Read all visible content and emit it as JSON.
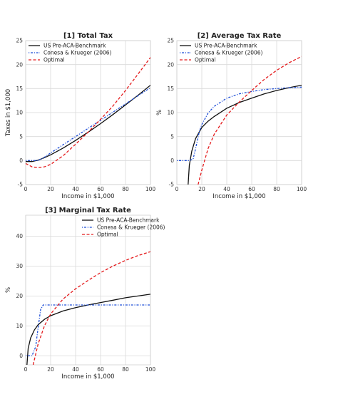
{
  "figure": {
    "legend_labels": [
      "US Pre-ACA-Benchmark",
      "Conesa & Krueger (2006)",
      "Optimal"
    ],
    "series_colors": [
      "#111111",
      "#1f4fd8",
      "#e41a1c"
    ],
    "series_styles": [
      "solid",
      "dashdot",
      "dashed"
    ]
  },
  "chart_data": [
    {
      "type": "line",
      "title": "[1] Total Tax",
      "xlabel": "Income in $1,000",
      "ylabel": "Taxes in $1,000",
      "xlim": [
        0,
        100
      ],
      "ylim": [
        -5,
        25
      ],
      "xticks": [
        0,
        20,
        40,
        60,
        80,
        100
      ],
      "yticks": [
        -5,
        0,
        5,
        10,
        15,
        20,
        25
      ],
      "legend_position": "top-left",
      "grid": true,
      "series": [
        {
          "name": "US Pre-ACA-Benchmark",
          "x": [
            0,
            5,
            10,
            15,
            20,
            30,
            40,
            50,
            60,
            70,
            80,
            90,
            100
          ],
          "y": [
            -0.2,
            -0.2,
            0.1,
            0.6,
            1.2,
            2.6,
            4.2,
            5.9,
            7.7,
            9.6,
            11.6,
            13.6,
            15.7
          ]
        },
        {
          "name": "Conesa & Krueger (2006)",
          "x": [
            0,
            5,
            10,
            15,
            20,
            30,
            40,
            50,
            60,
            70,
            80,
            90,
            100
          ],
          "y": [
            0,
            0,
            0,
            0.7,
            1.6,
            3.3,
            5.0,
            6.7,
            8.4,
            10.1,
            11.8,
            13.5,
            15.2
          ]
        },
        {
          "name": "Optimal",
          "x": [
            0,
            5,
            10,
            15,
            20,
            30,
            40,
            50,
            60,
            70,
            80,
            90,
            100
          ],
          "y": [
            -0.6,
            -1.3,
            -1.5,
            -1.3,
            -0.8,
            1.0,
            3.4,
            5.9,
            8.6,
            11.4,
            14.6,
            18.0,
            21.5
          ]
        }
      ]
    },
    {
      "type": "line",
      "title": "[2] Average Tax Rate",
      "xlabel": "Income in $1,000",
      "ylabel": "%",
      "xlim": [
        0,
        100
      ],
      "ylim": [
        -5,
        25
      ],
      "xticks": [
        0,
        20,
        40,
        60,
        80,
        100
      ],
      "yticks": [
        -5,
        0,
        5,
        10,
        15,
        20,
        25
      ],
      "legend_position": "top-left",
      "grid": true,
      "series": [
        {
          "name": "US Pre-ACA-Benchmark",
          "x": [
            9,
            10,
            12,
            15,
            20,
            25,
            30,
            40,
            50,
            60,
            70,
            80,
            90,
            100
          ],
          "y": [
            -5,
            -1.0,
            2.0,
            4.6,
            6.9,
            8.2,
            9.2,
            10.9,
            12.1,
            13.0,
            13.9,
            14.6,
            15.2,
            15.7
          ]
        },
        {
          "name": "Conesa & Krueger (2006)",
          "x": [
            0,
            10,
            13,
            15,
            18,
            20,
            25,
            30,
            40,
            50,
            60,
            70,
            80,
            90,
            100
          ],
          "y": [
            0,
            0,
            0.3,
            2.5,
            6.0,
            7.5,
            9.9,
            11.3,
            13.0,
            13.9,
            14.4,
            14.8,
            15.0,
            15.2,
            15.3
          ]
        },
        {
          "name": "Optimal",
          "x": [
            17,
            20,
            25,
            30,
            40,
            50,
            60,
            70,
            80,
            90,
            100
          ],
          "y": [
            -5,
            -2.0,
            2.5,
            5.5,
            9.5,
            12.2,
            14.6,
            16.9,
            18.8,
            20.4,
            21.7
          ]
        }
      ]
    },
    {
      "type": "line",
      "title": "[3] Marginal Tax Rate",
      "xlabel": "Income in $1,000",
      "ylabel": "%",
      "xlim": [
        0,
        100
      ],
      "ylim": [
        -3,
        47
      ],
      "xticks": [
        0,
        20,
        40,
        60,
        80,
        100
      ],
      "yticks": [
        0,
        10,
        20,
        30,
        40
      ],
      "legend_position": "top-right",
      "grid": true,
      "series": [
        {
          "name": "US Pre-ACA-Benchmark",
          "x": [
            1,
            2,
            4,
            7,
            10,
            15,
            20,
            30,
            40,
            50,
            60,
            70,
            80,
            90,
            100
          ],
          "y": [
            -3,
            2.5,
            6.0,
            8.7,
            10.4,
            12.2,
            13.4,
            15.0,
            16.1,
            17.0,
            17.8,
            18.6,
            19.4,
            20.0,
            20.6
          ]
        },
        {
          "name": "Conesa & Krueger (2006)",
          "x": [
            0,
            5,
            8,
            10,
            12,
            14,
            20,
            40,
            60,
            80,
            100
          ],
          "y": [
            0,
            0,
            3.0,
            9.5,
            15.5,
            17.0,
            17.0,
            17.0,
            17.0,
            17.0,
            17.0
          ]
        },
        {
          "name": "Optimal",
          "x": [
            6,
            10,
            15,
            20,
            30,
            40,
            50,
            60,
            70,
            80,
            90,
            100
          ],
          "y": [
            -3,
            4.0,
            10.0,
            14.0,
            19.0,
            22.4,
            25.2,
            27.8,
            30.0,
            31.9,
            33.5,
            34.8
          ]
        }
      ]
    }
  ]
}
